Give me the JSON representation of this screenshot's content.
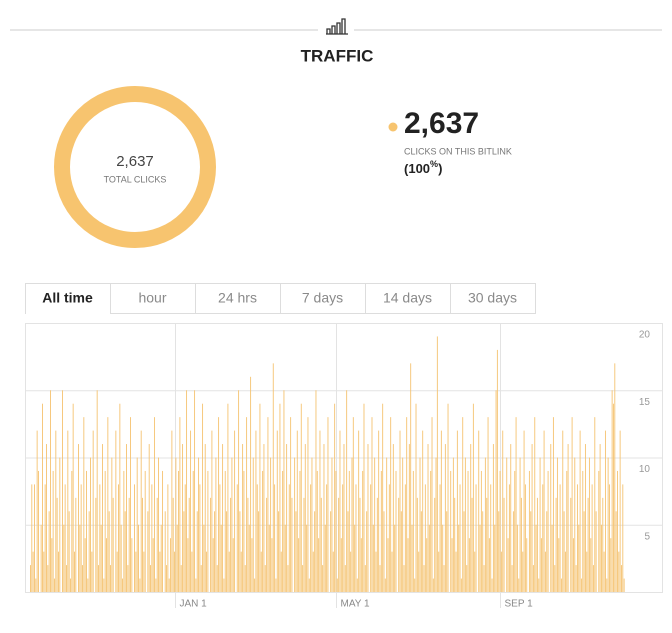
{
  "header": {
    "title": "TRAFFIC"
  },
  "summary": {
    "total_clicks": {
      "value": 2637,
      "label": "2,637"
    },
    "total_caption": "TOTAL CLICKS",
    "color": "#f7c46f",
    "link_clicks": {
      "value": 2637,
      "label": "2,637"
    },
    "link_caption": "CLICKS ON THIS BITLINK",
    "share": {
      "value": 100,
      "unit": "%"
    }
  },
  "tabs": [
    "All time",
    "hour",
    "24 hrs",
    "7 days",
    "14 days",
    "30 days"
  ],
  "chart_data": {
    "type": "bar",
    "color": "#f5c576",
    "ylim": [
      0,
      20
    ],
    "yticks": [
      5,
      10,
      15,
      20
    ],
    "grid": true,
    "categories": [
      null,
      null,
      null,
      null,
      null,
      null,
      null,
      null,
      null,
      null,
      null,
      null,
      null,
      null,
      null,
      null,
      null,
      null,
      null,
      null,
      null,
      null,
      null,
      null,
      null,
      null,
      null,
      null,
      null,
      null,
      null,
      null,
      null,
      null,
      null,
      null,
      null,
      null,
      null,
      null,
      null,
      null,
      null,
      null,
      null,
      null,
      null,
      null,
      null,
      null,
      null,
      null,
      null,
      null,
      null,
      null,
      null,
      null,
      null,
      null,
      null,
      null,
      null,
      null,
      null,
      null,
      null,
      null,
      null,
      null,
      null,
      null,
      null,
      null,
      null,
      null,
      null,
      null,
      null,
      null,
      null,
      null,
      null,
      null,
      null,
      null,
      null,
      null,
      null,
      null,
      null,
      null,
      null,
      null,
      null,
      null,
      null,
      null,
      null,
      null,
      null,
      null,
      null,
      null,
      null,
      null,
      null,
      null,
      null,
      "JAN 1",
      null,
      null,
      null,
      null,
      null,
      null,
      null,
      null,
      null,
      null,
      null,
      null,
      null,
      null,
      null,
      null,
      null,
      null,
      null,
      null,
      null,
      null,
      null,
      null,
      null,
      null,
      null,
      null,
      null,
      null,
      null,
      null,
      null,
      null,
      null,
      null,
      null,
      null,
      null,
      null,
      null,
      null,
      null,
      null,
      null,
      null,
      null,
      null,
      null,
      null,
      null,
      null,
      null,
      null,
      null,
      null,
      null,
      null,
      null,
      null,
      null,
      null,
      null,
      null,
      null,
      null,
      null,
      null,
      null,
      null,
      null,
      null,
      null,
      null,
      null,
      null,
      null,
      null,
      null,
      null,
      null,
      null,
      null,
      null,
      null,
      null,
      null,
      null,
      null,
      null,
      null,
      null,
      null,
      null,
      null,
      null,
      null,
      null,
      null,
      null,
      null,
      null,
      null,
      null,
      null,
      null,
      null,
      null,
      null,
      null,
      null,
      null,
      null,
      null,
      null,
      null,
      null,
      null,
      null,
      "MAY 1",
      null,
      null,
      null,
      null,
      null,
      null,
      null,
      null,
      null,
      null,
      null,
      null,
      null,
      null,
      null,
      null,
      null,
      null,
      null,
      null,
      null,
      null,
      null,
      null,
      null,
      null,
      null,
      null,
      null,
      null,
      null,
      null,
      null,
      null,
      null,
      null,
      null,
      null,
      null,
      null,
      null,
      null,
      null,
      null,
      null,
      null,
      null,
      null,
      null,
      null,
      null,
      null,
      null,
      null,
      null,
      null,
      null,
      null,
      null,
      null,
      null,
      null,
      null,
      null,
      null,
      null,
      null,
      null,
      null,
      null,
      null,
      null,
      null,
      null,
      null,
      null,
      null,
      null,
      null,
      null,
      null,
      null,
      null,
      null,
      null,
      null,
      null,
      null,
      null,
      null,
      null,
      null,
      null,
      null,
      null,
      null,
      null,
      null,
      null,
      null,
      null,
      null,
      null,
      null,
      null,
      null,
      null,
      null,
      null,
      null,
      null,
      null,
      null,
      null,
      null,
      null,
      null,
      null,
      null,
      null,
      null,
      null,
      "SEP 1",
      null,
      null,
      null,
      null,
      null,
      null,
      null,
      null,
      null,
      null,
      null,
      null,
      null,
      null,
      null,
      null,
      null,
      null,
      null,
      null,
      null,
      null,
      null,
      null,
      null,
      null,
      null,
      null,
      null,
      null,
      null,
      null,
      null,
      null,
      null,
      null,
      null,
      null,
      null,
      null,
      null,
      null,
      null,
      null,
      null,
      null,
      null,
      null,
      null,
      null,
      null,
      null,
      null,
      null,
      null,
      null,
      null,
      null,
      null,
      null,
      null,
      null,
      null,
      null,
      null,
      null,
      null,
      null,
      null,
      null,
      null,
      null,
      null,
      null,
      null,
      null,
      null,
      null,
      null,
      null,
      null,
      null,
      null,
      null,
      null,
      null,
      null,
      null,
      null,
      null,
      null,
      null,
      null
    ],
    "values": [
      2,
      8,
      3,
      8,
      1,
      12,
      9,
      0,
      5,
      14,
      3,
      8,
      11,
      2,
      6,
      15,
      4,
      9,
      1,
      12,
      7,
      3,
      10,
      0,
      15,
      5,
      8,
      2,
      12,
      6,
      1,
      9,
      14,
      3,
      7,
      0,
      11,
      5,
      8,
      2,
      13,
      4,
      9,
      1,
      6,
      10,
      3,
      12,
      0,
      7,
      15,
      2,
      8,
      5,
      11,
      1,
      9,
      4,
      13,
      6,
      2,
      10,
      7,
      0,
      12,
      3,
      8,
      14,
      5,
      1,
      9,
      6,
      11,
      2,
      7,
      13,
      4,
      0,
      8,
      3,
      10,
      5,
      1,
      12,
      7,
      3,
      9,
      0,
      6,
      11,
      2,
      8,
      4,
      13,
      1,
      7,
      10,
      3,
      5,
      9,
      0,
      6,
      2,
      8,
      1,
      4,
      12,
      7,
      3,
      10,
      5,
      9,
      13,
      2,
      11,
      6,
      8,
      15,
      4,
      7,
      12,
      3,
      9,
      15,
      1,
      6,
      10,
      8,
      2,
      14,
      5,
      11,
      3,
      9,
      0,
      7,
      12,
      4,
      6,
      10,
      2,
      13,
      8,
      5,
      11,
      1,
      9,
      6,
      14,
      3,
      7,
      10,
      4,
      12,
      0,
      8,
      15,
      6,
      3,
      11,
      9,
      2,
      13,
      7,
      5,
      16,
      4,
      10,
      1,
      12,
      8,
      6,
      14,
      3,
      9,
      11,
      2,
      7,
      13,
      5,
      10,
      4,
      17,
      8,
      1,
      12,
      6,
      14,
      3,
      9,
      15,
      5,
      11,
      2,
      8,
      13,
      7,
      0,
      10,
      6,
      12,
      4,
      9,
      14,
      2,
      7,
      11,
      5,
      13,
      1,
      8,
      10,
      3,
      6,
      15,
      9,
      4,
      12,
      7,
      2,
      11,
      5,
      8,
      13,
      0,
      6,
      10,
      3,
      14,
      9,
      1,
      7,
      12,
      4,
      8,
      11,
      2,
      15,
      6,
      9,
      3,
      10,
      13,
      5,
      8,
      1,
      12,
      7,
      4,
      9,
      14,
      2,
      6,
      11,
      0,
      8,
      13,
      5,
      10,
      3,
      7,
      12,
      2,
      9,
      14,
      6,
      1,
      10,
      4,
      8,
      13,
      3,
      11,
      5,
      9,
      0,
      7,
      12,
      6,
      10,
      2,
      8,
      13,
      4,
      11,
      17,
      5,
      9,
      1,
      14,
      7,
      3,
      10,
      6,
      12,
      2,
      8,
      4,
      11,
      5,
      9,
      13,
      1,
      7,
      10,
      19,
      3,
      8,
      12,
      5,
      2,
      11,
      6,
      14,
      0,
      9,
      4,
      10,
      7,
      3,
      12,
      5,
      8,
      1,
      13,
      6,
      10,
      2,
      9,
      4,
      11,
      7,
      14,
      3,
      8,
      0,
      12,
      5,
      9,
      6,
      2,
      10,
      7,
      13,
      4,
      8,
      1,
      11,
      5,
      15,
      18,
      6,
      9,
      3,
      12,
      7,
      0,
      10,
      4,
      8,
      11,
      2,
      6,
      9,
      13,
      5,
      1,
      10,
      7,
      3,
      12,
      8,
      4,
      0,
      9,
      6,
      11,
      2,
      13,
      5,
      7,
      1,
      10,
      4,
      8,
      12,
      3,
      6,
      9,
      0,
      11,
      5,
      13,
      2,
      7,
      10,
      4,
      8,
      1,
      12,
      6,
      3,
      9,
      11,
      0,
      7,
      13,
      4,
      10,
      2,
      8,
      5,
      12,
      1,
      9,
      6,
      11,
      3,
      7,
      10,
      4,
      8,
      2,
      13,
      6,
      0,
      9,
      11,
      5,
      7,
      3,
      12,
      1,
      10,
      8,
      4,
      15,
      14,
      17,
      6,
      9,
      3,
      12,
      2,
      8,
      1
    ]
  }
}
